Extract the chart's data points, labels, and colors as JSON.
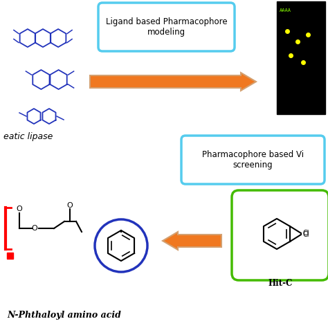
{
  "bg_color": "#ffffff",
  "box1_text": "Ligand based Pharmacophore\nmodeling",
  "box2_text": "Pharmacophore based Vi\nscreening",
  "label_pancreatic": "eatic lipase",
  "label_hitc": "Hit-C",
  "label_bottom": "N-Phthaloyl amino acid",
  "box1_color": "#55ccee",
  "box2_color": "#55ccee",
  "box_hit_color": "#44bb00",
  "circle_color": "#2233bb",
  "arrow_color": "#f07820",
  "arrow_edge": "#d4a070",
  "mol_color": "#2233bb",
  "black_rect": "#000000",
  "yellow": "#ffff00",
  "green_text": "#88ff00"
}
